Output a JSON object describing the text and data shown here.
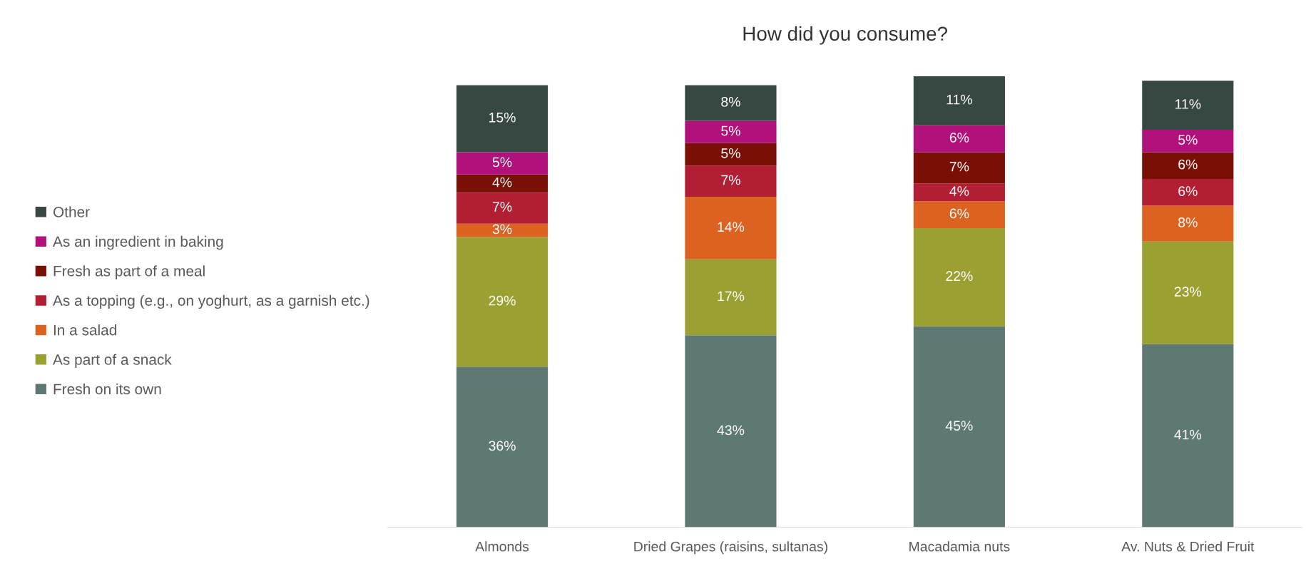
{
  "chart_data": {
    "type": "bar",
    "title": "How did you consume?",
    "stacked": true,
    "legend": "left",
    "grid": false,
    "categories": [
      "Almonds",
      "Dried Grapes (raisins, sultanas)",
      "Macadamia nuts",
      "Av. Nuts & Dried Fruit"
    ],
    "series": [
      {
        "name": "Fresh on its own",
        "color": "#5e7872",
        "values": [
          36,
          43,
          45,
          41
        ],
        "value_labels": [
          "36%",
          "43%",
          "45%",
          "41%"
        ]
      },
      {
        "name": "As part of a snack",
        "color": "#9ba033",
        "values": [
          29,
          17,
          22,
          23
        ],
        "value_labels": [
          "29%",
          "17%",
          "22%",
          "23%"
        ]
      },
      {
        "name": "In a salad",
        "color": "#dc6222",
        "values": [
          3,
          14,
          6,
          8
        ],
        "value_labels": [
          "3%",
          "14%",
          "6%",
          "8%"
        ]
      },
      {
        "name": "As a topping (e.g., on yoghurt, as a garnish etc.)",
        "color": "#b21e33",
        "values": [
          7,
          7,
          4,
          6
        ],
        "value_labels": [
          "7%",
          "7%",
          "4%",
          "6%"
        ]
      },
      {
        "name": "Fresh as part of a meal",
        "color": "#7a1005",
        "values": [
          4,
          5,
          7,
          6
        ],
        "value_labels": [
          "4%",
          "5%",
          "7%",
          "6%"
        ]
      },
      {
        "name": "As an ingredient in baking",
        "color": "#b0117a",
        "values": [
          5,
          5,
          6,
          5
        ],
        "value_labels": [
          "5%",
          "5%",
          "6%",
          "5%"
        ]
      },
      {
        "name": "Other",
        "color": "#374842",
        "values": [
          15,
          8,
          11,
          11
        ],
        "value_labels": [
          "15%",
          "8%",
          "11%",
          "11%"
        ]
      }
    ]
  }
}
